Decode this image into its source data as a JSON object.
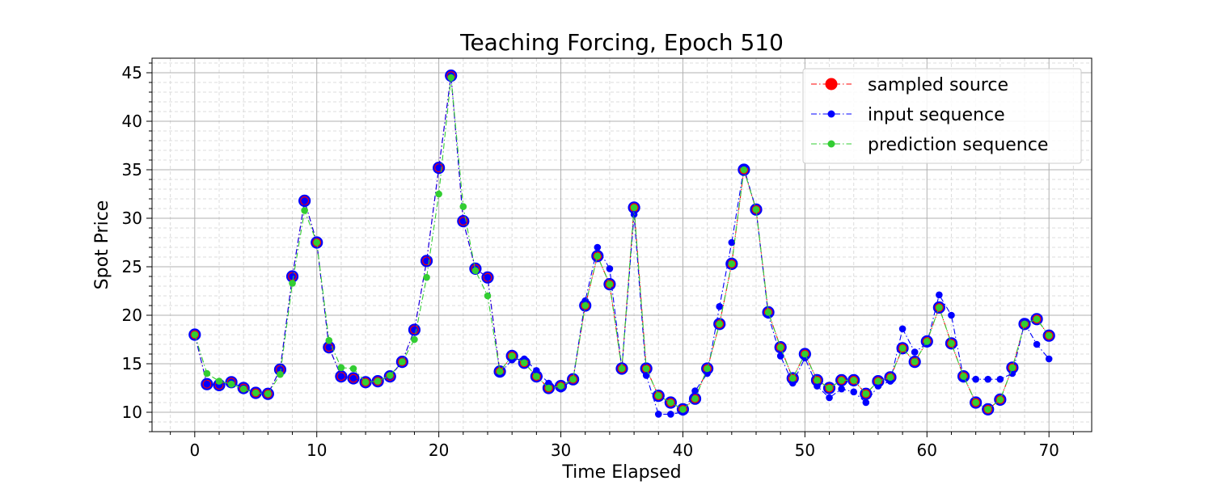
{
  "chart_data": {
    "type": "line",
    "title": "Teaching Forcing, Epoch 510",
    "xlabel": "Time Elapsed",
    "ylabel": "Spot Price",
    "xlim": [
      -3.5,
      73.5
    ],
    "ylim": [
      8.0,
      46.5
    ],
    "x_ticks": [
      0,
      10,
      20,
      30,
      40,
      50,
      60,
      70
    ],
    "y_ticks": [
      10,
      15,
      20,
      25,
      30,
      35,
      40,
      45
    ],
    "grid": true,
    "minor_grid": true,
    "legend_position": "top-right",
    "series": [
      {
        "name": "sampled source",
        "color": "#ff0000",
        "edge_color": "#0000ff",
        "x": [
          0,
          1,
          2,
          3,
          4,
          5,
          6,
          7,
          8,
          9,
          10,
          11,
          12,
          13,
          14,
          15,
          16,
          17,
          18,
          19,
          20,
          21,
          22,
          23,
          24,
          25,
          26,
          27,
          28,
          29,
          30,
          31,
          32,
          33,
          34,
          35,
          36,
          37,
          38,
          39,
          40,
          41,
          42,
          43,
          44,
          45,
          46,
          47,
          48,
          49,
          50,
          51,
          52,
          53,
          54,
          55,
          56,
          57,
          58,
          59,
          60,
          61,
          62,
          63,
          64,
          65,
          66,
          67,
          68,
          69,
          70
        ],
        "values": [
          18.0,
          12.9,
          12.8,
          13.1,
          12.5,
          12.0,
          11.9,
          14.4,
          24.0,
          31.8,
          27.5,
          16.7,
          13.7,
          13.5,
          13.1,
          13.2,
          13.7,
          15.2,
          18.5,
          25.6,
          35.2,
          44.7,
          29.7,
          24.8,
          23.9,
          14.2,
          15.8,
          15.1,
          13.7,
          12.5,
          12.7,
          13.4,
          21.0,
          26.1,
          23.2,
          14.5,
          31.1,
          14.5,
          11.7,
          11.0,
          10.3,
          11.4,
          14.5,
          19.1,
          25.3,
          35.0,
          30.9,
          20.3,
          16.7,
          13.5,
          16.0,
          13.3,
          12.5,
          13.3,
          13.3,
          11.9,
          13.2,
          13.6,
          16.6,
          15.2,
          17.3,
          20.8,
          17.1,
          13.7,
          11.0,
          10.3,
          11.3,
          14.6,
          19.1,
          19.6,
          17.9
        ]
      },
      {
        "name": "input sequence",
        "color": "#0000ff",
        "x": [
          0,
          1,
          2,
          3,
          4,
          5,
          6,
          7,
          8,
          9,
          10,
          11,
          12,
          13,
          14,
          15,
          16,
          17,
          18,
          19,
          20,
          21,
          22,
          23,
          24,
          25,
          26,
          27,
          28,
          29,
          30,
          31,
          32,
          33,
          34,
          35,
          36,
          37,
          38,
          39,
          40,
          41,
          42,
          43,
          44,
          45,
          46,
          47,
          48,
          49,
          50,
          51,
          52,
          53,
          54,
          55,
          56,
          57,
          58,
          59,
          60,
          61,
          62,
          63,
          64,
          65,
          66,
          67,
          68,
          69,
          70
        ],
        "values": [
          18.0,
          12.9,
          12.8,
          13.1,
          12.5,
          12.0,
          11.9,
          14.4,
          24.0,
          31.8,
          27.5,
          16.7,
          13.7,
          13.5,
          13.1,
          13.2,
          13.7,
          15.2,
          18.5,
          25.6,
          35.2,
          44.7,
          29.7,
          24.8,
          23.9,
          14.0,
          15.4,
          15.5,
          14.3,
          13.0,
          12.4,
          13.4,
          21.5,
          27.0,
          24.8,
          14.5,
          30.4,
          13.8,
          9.8,
          9.8,
          10.0,
          12.2,
          14.0,
          20.9,
          27.5,
          35.2,
          30.9,
          20.0,
          15.8,
          13.0,
          15.6,
          12.7,
          11.5,
          12.4,
          12.1,
          11.0,
          12.7,
          13.2,
          18.6,
          16.2,
          17.1,
          22.1,
          20.0,
          13.5,
          13.4,
          13.4,
          13.4,
          14.0,
          19.2,
          17.0,
          15.5
        ]
      },
      {
        "name": "prediction sequence",
        "color": "#32cd32",
        "x": [
          0,
          1,
          2,
          3,
          4,
          5,
          6,
          7,
          8,
          9,
          10,
          11,
          12,
          13,
          14,
          15,
          16,
          17,
          18,
          19,
          20,
          21,
          22,
          23,
          24,
          25,
          26,
          27,
          28,
          29,
          30,
          31,
          32,
          33,
          34,
          35,
          36,
          37,
          38,
          39,
          40,
          41,
          42,
          43,
          44,
          45,
          46,
          47,
          48,
          49,
          50,
          51,
          52,
          53,
          54,
          55,
          56,
          57,
          58,
          59,
          60,
          61,
          62,
          63,
          64,
          65,
          66,
          67,
          68,
          69,
          70
        ],
        "values": [
          18.0,
          14.0,
          13.2,
          12.9,
          12.4,
          12.0,
          11.9,
          13.9,
          23.3,
          30.8,
          27.5,
          17.4,
          14.6,
          14.5,
          13.1,
          13.2,
          13.8,
          15.2,
          17.5,
          23.9,
          32.5,
          44.5,
          31.2,
          24.6,
          22.0,
          14.2,
          15.8,
          15.1,
          13.7,
          12.5,
          12.7,
          13.4,
          21.0,
          26.1,
          23.2,
          14.5,
          31.1,
          14.5,
          11.7,
          11.0,
          10.3,
          11.4,
          14.5,
          19.1,
          25.3,
          35.0,
          30.9,
          20.3,
          16.7,
          13.5,
          16.0,
          13.3,
          12.5,
          13.3,
          13.3,
          11.9,
          13.2,
          13.6,
          16.6,
          15.2,
          17.3,
          20.8,
          17.1,
          13.7,
          11.0,
          10.3,
          11.3,
          14.6,
          19.1,
          19.6,
          17.9
        ]
      }
    ]
  }
}
